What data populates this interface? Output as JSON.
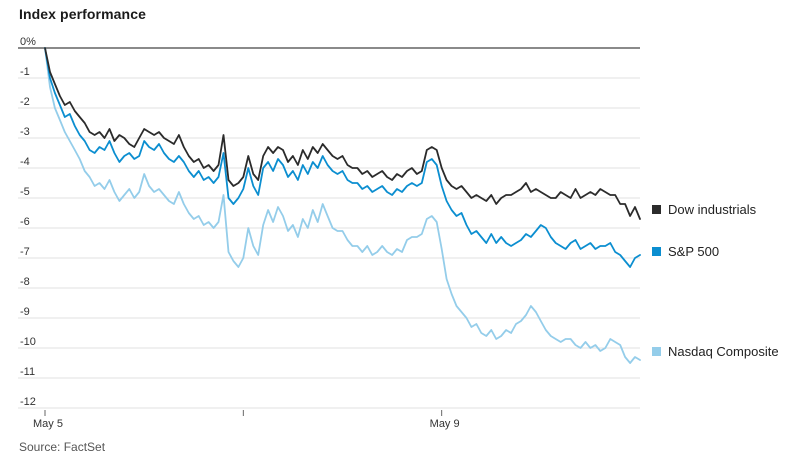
{
  "title": "Index performance",
  "source": "Source: FactSet",
  "chart_data": {
    "type": "line",
    "title": "Index performance",
    "xlabel": "",
    "ylabel": "",
    "ylim": [
      -12,
      0
    ],
    "y_ticks": [
      0,
      -1,
      -2,
      -3,
      -4,
      -5,
      -6,
      -7,
      -8,
      -9,
      -10,
      -11,
      -12
    ],
    "y_tick_labels": [
      "0%",
      "-1",
      "-2",
      "-3",
      "-4",
      "-5",
      "-6",
      "-7",
      "-8",
      "-9",
      "-10",
      "-11",
      "-12"
    ],
    "x_range": [
      0,
      120
    ],
    "x_ticks": [
      0,
      40,
      80
    ],
    "x_tick_labels": [
      "May 5",
      "",
      "May 9"
    ],
    "grid": true,
    "legend": "right",
    "colors": {
      "Dow industrials": "#2b2b2b",
      "S&P 500": "#0b8ed0",
      "Nasdaq Composite": "#94cdea",
      "grid": "#e0e0e0",
      "zero_line": "#444444"
    },
    "series": [
      {
        "name": "Dow industrials",
        "x": [
          0,
          1,
          2,
          3,
          4,
          5,
          6,
          7,
          8,
          9,
          10,
          11,
          12,
          13,
          14,
          15,
          16,
          17,
          18,
          19,
          20,
          21,
          22,
          23,
          24,
          25,
          26,
          27,
          28,
          29,
          30,
          31,
          32,
          33,
          34,
          35,
          36,
          37,
          38,
          39,
          40,
          41,
          42,
          43,
          44,
          45,
          46,
          47,
          48,
          49,
          50,
          51,
          52,
          53,
          54,
          55,
          56,
          57,
          58,
          59,
          60,
          61,
          62,
          63,
          64,
          65,
          66,
          67,
          68,
          69,
          70,
          71,
          72,
          73,
          74,
          75,
          76,
          77,
          78,
          79,
          80,
          81,
          82,
          83,
          84,
          85,
          86,
          87,
          88,
          89,
          90,
          91,
          92,
          93,
          94,
          95,
          96,
          97,
          98,
          99,
          100,
          101,
          102,
          103,
          104,
          105,
          106,
          107,
          108,
          109,
          110,
          111,
          112,
          113,
          114,
          115,
          116,
          117,
          118,
          119,
          120
        ],
        "values": [
          0,
          -0.8,
          -1.2,
          -1.6,
          -1.9,
          -1.8,
          -2.1,
          -2.3,
          -2.5,
          -2.8,
          -2.9,
          -2.8,
          -3.0,
          -2.7,
          -3.1,
          -2.9,
          -3.0,
          -3.2,
          -3.3,
          -3.0,
          -2.7,
          -2.8,
          -2.9,
          -2.8,
          -3.0,
          -3.1,
          -3.2,
          -2.9,
          -3.3,
          -3.6,
          -3.8,
          -3.7,
          -4.0,
          -3.9,
          -4.1,
          -3.9,
          -2.9,
          -4.4,
          -4.6,
          -4.5,
          -4.3,
          -3.6,
          -4.2,
          -4.4,
          -3.6,
          -3.3,
          -3.5,
          -3.3,
          -3.4,
          -3.8,
          -3.6,
          -3.9,
          -3.4,
          -3.7,
          -3.3,
          -3.5,
          -3.2,
          -3.4,
          -3.6,
          -3.7,
          -3.6,
          -3.9,
          -4.0,
          -4.0,
          -4.2,
          -4.1,
          -4.3,
          -4.2,
          -4.1,
          -4.3,
          -4.4,
          -4.2,
          -4.3,
          -4.1,
          -4.0,
          -4.2,
          -4.1,
          -3.4,
          -3.3,
          -3.4,
          -4.0,
          -4.4,
          -4.6,
          -4.7,
          -4.6,
          -4.8,
          -5.0,
          -4.9,
          -5.0,
          -5.1,
          -4.9,
          -5.2,
          -5.0,
          -4.9,
          -4.9,
          -4.8,
          -4.7,
          -4.5,
          -4.8,
          -4.7,
          -4.8,
          -4.9,
          -5.0,
          -5.0,
          -4.8,
          -4.9,
          -5.0,
          -4.7,
          -5.0,
          -4.9,
          -4.8,
          -4.9,
          -4.7,
          -4.8,
          -4.9,
          -4.9,
          -5.2,
          -5.2,
          -5.6,
          -5.3,
          -5.7
        ]
      },
      {
        "name": "S&P 500",
        "x": [
          0,
          1,
          2,
          3,
          4,
          5,
          6,
          7,
          8,
          9,
          10,
          11,
          12,
          13,
          14,
          15,
          16,
          17,
          18,
          19,
          20,
          21,
          22,
          23,
          24,
          25,
          26,
          27,
          28,
          29,
          30,
          31,
          32,
          33,
          34,
          35,
          36,
          37,
          38,
          39,
          40,
          41,
          42,
          43,
          44,
          45,
          46,
          47,
          48,
          49,
          50,
          51,
          52,
          53,
          54,
          55,
          56,
          57,
          58,
          59,
          60,
          61,
          62,
          63,
          64,
          65,
          66,
          67,
          68,
          69,
          70,
          71,
          72,
          73,
          74,
          75,
          76,
          77,
          78,
          79,
          80,
          81,
          82,
          83,
          84,
          85,
          86,
          87,
          88,
          89,
          90,
          91,
          92,
          93,
          94,
          95,
          96,
          97,
          98,
          99,
          100,
          101,
          102,
          103,
          104,
          105,
          106,
          107,
          108,
          109,
          110,
          111,
          112,
          113,
          114,
          115,
          116,
          117,
          118,
          119,
          120
        ],
        "values": [
          0,
          -1.0,
          -1.5,
          -1.9,
          -2.3,
          -2.2,
          -2.6,
          -2.9,
          -3.1,
          -3.4,
          -3.5,
          -3.3,
          -3.4,
          -3.1,
          -3.5,
          -3.8,
          -3.6,
          -3.5,
          -3.7,
          -3.6,
          -3.1,
          -3.3,
          -3.4,
          -3.2,
          -3.5,
          -3.7,
          -3.8,
          -3.6,
          -3.8,
          -4.1,
          -4.3,
          -4.1,
          -4.4,
          -4.3,
          -4.5,
          -4.3,
          -3.5,
          -5.0,
          -5.2,
          -5.0,
          -4.7,
          -4.0,
          -4.6,
          -4.9,
          -4.0,
          -3.8,
          -4.1,
          -3.7,
          -3.9,
          -4.3,
          -4.1,
          -4.4,
          -3.9,
          -4.2,
          -3.8,
          -4.0,
          -3.6,
          -3.9,
          -4.1,
          -4.2,
          -4.1,
          -4.4,
          -4.5,
          -4.5,
          -4.7,
          -4.6,
          -4.8,
          -4.7,
          -4.6,
          -4.8,
          -4.9,
          -4.7,
          -4.8,
          -4.6,
          -4.5,
          -4.6,
          -4.5,
          -3.8,
          -3.7,
          -3.9,
          -4.6,
          -5.1,
          -5.4,
          -5.6,
          -5.5,
          -5.9,
          -6.2,
          -6.1,
          -6.3,
          -6.5,
          -6.2,
          -6.5,
          -6.3,
          -6.5,
          -6.6,
          -6.5,
          -6.4,
          -6.2,
          -6.3,
          -6.1,
          -5.9,
          -6.0,
          -6.3,
          -6.5,
          -6.6,
          -6.7,
          -6.5,
          -6.4,
          -6.7,
          -6.6,
          -6.5,
          -6.7,
          -6.6,
          -6.6,
          -6.5,
          -6.8,
          -6.9,
          -7.1,
          -7.3,
          -7.0,
          -6.9
        ]
      },
      {
        "name": "Nasdaq Composite",
        "x": [
          0,
          1,
          2,
          3,
          4,
          5,
          6,
          7,
          8,
          9,
          10,
          11,
          12,
          13,
          14,
          15,
          16,
          17,
          18,
          19,
          20,
          21,
          22,
          23,
          24,
          25,
          26,
          27,
          28,
          29,
          30,
          31,
          32,
          33,
          34,
          35,
          36,
          37,
          38,
          39,
          40,
          41,
          42,
          43,
          44,
          45,
          46,
          47,
          48,
          49,
          50,
          51,
          52,
          53,
          54,
          55,
          56,
          57,
          58,
          59,
          60,
          61,
          62,
          63,
          64,
          65,
          66,
          67,
          68,
          69,
          70,
          71,
          72,
          73,
          74,
          75,
          76,
          77,
          78,
          79,
          80,
          81,
          82,
          83,
          84,
          85,
          86,
          87,
          88,
          89,
          90,
          91,
          92,
          93,
          94,
          95,
          96,
          97,
          98,
          99,
          100,
          101,
          102,
          103,
          104,
          105,
          106,
          107,
          108,
          109,
          110,
          111,
          112,
          113,
          114,
          115,
          116,
          117,
          118,
          119,
          120
        ],
        "values": [
          0,
          -1.3,
          -2.0,
          -2.4,
          -2.8,
          -3.1,
          -3.4,
          -3.7,
          -4.1,
          -4.3,
          -4.6,
          -4.5,
          -4.7,
          -4.4,
          -4.8,
          -5.1,
          -4.9,
          -4.7,
          -5.0,
          -4.8,
          -4.2,
          -4.6,
          -4.8,
          -4.7,
          -4.9,
          -5.1,
          -5.2,
          -4.8,
          -5.2,
          -5.5,
          -5.7,
          -5.6,
          -5.9,
          -5.8,
          -6.0,
          -5.8,
          -4.9,
          -6.8,
          -7.1,
          -7.3,
          -7.0,
          -6.0,
          -6.6,
          -6.9,
          -5.9,
          -5.4,
          -5.8,
          -5.3,
          -5.6,
          -6.1,
          -5.9,
          -6.3,
          -5.7,
          -6.0,
          -5.4,
          -5.8,
          -5.2,
          -5.6,
          -6.0,
          -6.1,
          -6.1,
          -6.4,
          -6.6,
          -6.6,
          -6.8,
          -6.6,
          -6.9,
          -6.8,
          -6.6,
          -6.8,
          -6.9,
          -6.7,
          -6.8,
          -6.4,
          -6.3,
          -6.3,
          -6.2,
          -5.7,
          -5.6,
          -5.8,
          -6.7,
          -7.7,
          -8.2,
          -8.6,
          -8.8,
          -9.0,
          -9.3,
          -9.2,
          -9.5,
          -9.6,
          -9.4,
          -9.7,
          -9.6,
          -9.4,
          -9.5,
          -9.2,
          -9.1,
          -8.9,
          -8.6,
          -8.8,
          -9.1,
          -9.4,
          -9.6,
          -9.7,
          -9.8,
          -9.7,
          -9.7,
          -9.9,
          -10.0,
          -9.8,
          -10.0,
          -9.9,
          -10.1,
          -10.0,
          -9.7,
          -9.8,
          -9.9,
          -10.3,
          -10.5,
          -10.3,
          -10.4
        ]
      }
    ]
  }
}
